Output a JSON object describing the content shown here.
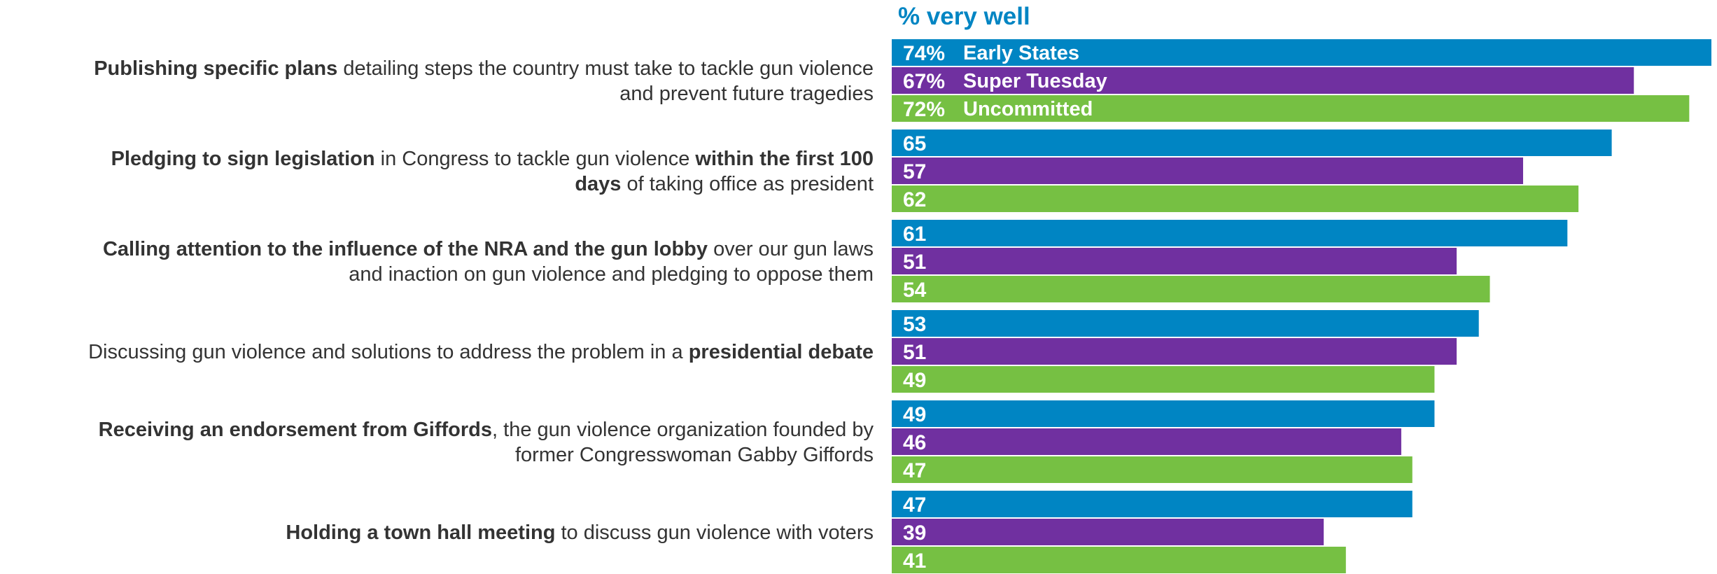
{
  "chart_data": {
    "type": "bar",
    "orientation": "horizontal",
    "title": "% very well",
    "categories": [
      [
        {
          "text": "Publishing specific plans",
          "bold": true
        },
        {
          "text": " detailing steps the country must take to tackle gun violence",
          "bold": false
        },
        {
          "text": "\n",
          "bold": false
        },
        {
          "text": "and prevent future tragedies",
          "bold": false
        }
      ],
      [
        {
          "text": "Pledging to sign legislation",
          "bold": true
        },
        {
          "text": " in Congress to tackle gun violence ",
          "bold": false
        },
        {
          "text": "within the first 100",
          "bold": true
        },
        {
          "text": "\n",
          "bold": false
        },
        {
          "text": "days",
          "bold": true
        },
        {
          "text": " of taking office as president",
          "bold": false
        }
      ],
      [
        {
          "text": "Calling attention to the influence of the NRA and the gun lobby",
          "bold": true
        },
        {
          "text": " over our gun laws",
          "bold": false
        },
        {
          "text": "\n",
          "bold": false
        },
        {
          "text": "and inaction on gun violence and pledging to oppose them",
          "bold": false
        }
      ],
      [
        {
          "text": "Discussing gun violence and solutions to address the problem in a ",
          "bold": false
        },
        {
          "text": "presidential debate",
          "bold": true
        }
      ],
      [
        {
          "text": "Receiving an endorsement from Giffords",
          "bold": true
        },
        {
          "text": ", the gun violence organization founded by",
          "bold": false
        },
        {
          "text": "\n",
          "bold": false
        },
        {
          "text": "former Congresswoman Gabby Giffords",
          "bold": false
        }
      ],
      [
        {
          "text": "Holding a town hall meeting",
          "bold": true
        },
        {
          "text": " to discuss gun violence with voters",
          "bold": false
        }
      ]
    ],
    "series": [
      {
        "name": "Early States",
        "color": "#0085C3",
        "values": [
          74,
          65,
          61,
          53,
          49,
          47
        ],
        "labels": [
          "74%",
          "65",
          "61",
          "53",
          "49",
          "47"
        ]
      },
      {
        "name": "Super Tuesday",
        "color": "#7030A0",
        "values": [
          67,
          57,
          51,
          51,
          46,
          39
        ],
        "labels": [
          "67%",
          "57",
          "51",
          "51",
          "46",
          "39"
        ]
      },
      {
        "name": "Uncommitted",
        "color": "#76C043",
        "values": [
          72,
          62,
          54,
          49,
          47,
          41
        ],
        "labels": [
          "72%",
          "62",
          "54",
          "49",
          "47",
          "41"
        ]
      }
    ],
    "title_color": "#0085C3",
    "xlim": [
      0,
      74
    ],
    "grid": false,
    "legend": "inline on first group"
  }
}
